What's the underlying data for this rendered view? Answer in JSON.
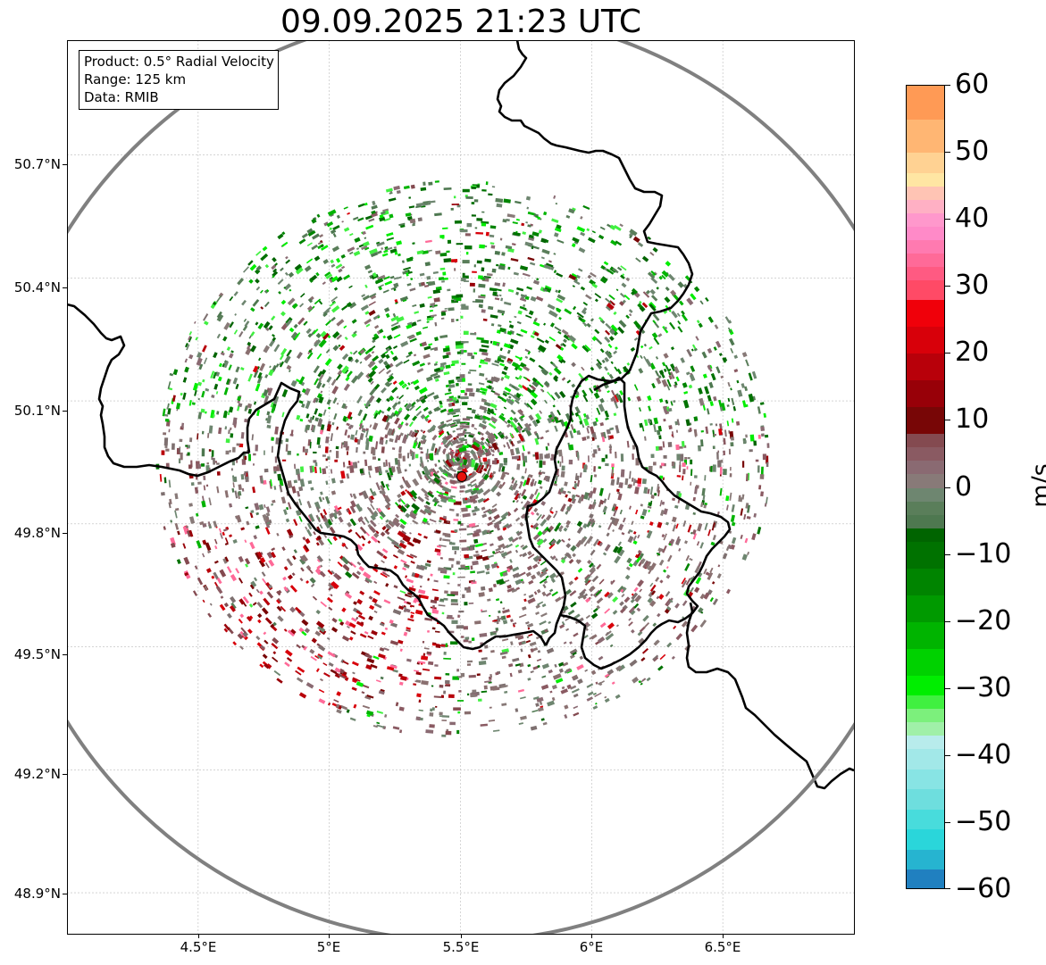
{
  "title": "09.09.2025 21:23 UTC",
  "info_box": {
    "product": "Product: 0.5° Radial Velocity",
    "range": "Range: 125 km",
    "data": "Data: RMIB"
  },
  "map": {
    "lon_range": [
      4.0,
      7.0
    ],
    "lat_range": [
      48.8,
      50.98
    ],
    "radar_site": {
      "lon": 5.505,
      "lat": 49.915
    },
    "range_km": 125,
    "x_ticks": [
      "4.5°E",
      "5°E",
      "5.5°E",
      "6°E",
      "6.5°E"
    ],
    "x_tick_values": [
      4.5,
      5.0,
      5.5,
      6.0,
      6.5
    ],
    "y_ticks": [
      "50.7°N",
      "50.4°N",
      "50.1°N",
      "49.8°N",
      "49.5°N",
      "49.2°N",
      "48.9°N"
    ],
    "y_tick_values": [
      50.7,
      50.4,
      50.1,
      49.8,
      49.5,
      49.2,
      48.9
    ],
    "gridlines": true,
    "colors": {
      "range_ring": "#808080",
      "borders": "#000000",
      "radar_marker": "#e8120c"
    }
  },
  "colorbar": {
    "unit": "m/s",
    "min": -60,
    "max": 60,
    "tick_values": [
      60,
      50,
      40,
      30,
      20,
      10,
      0,
      -10,
      -20,
      -30,
      -40,
      -50,
      -60
    ],
    "ticks": [
      "60",
      "50",
      "40",
      "30",
      "20",
      "10",
      "0",
      "−10",
      "−20",
      "−30",
      "−40",
      "−50",
      "−60"
    ],
    "segments": [
      {
        "from": 55,
        "to": 60,
        "color": "#ff9a55"
      },
      {
        "from": 50,
        "to": 55,
        "color": "#ffb673"
      },
      {
        "from": 47,
        "to": 50,
        "color": "#ffd293"
      },
      {
        "from": 45,
        "to": 47,
        "color": "#ffe6a3"
      },
      {
        "from": 43,
        "to": 45,
        "color": "#ffc4b4"
      },
      {
        "from": 41,
        "to": 43,
        "color": "#ffb0c4"
      },
      {
        "from": 39,
        "to": 41,
        "color": "#ff98cc"
      },
      {
        "from": 37,
        "to": 39,
        "color": "#ff8ac8"
      },
      {
        "from": 35,
        "to": 37,
        "color": "#ff7ab0"
      },
      {
        "from": 33,
        "to": 35,
        "color": "#ff6a98"
      },
      {
        "from": 31,
        "to": 33,
        "color": "#ff5a82"
      },
      {
        "from": 28,
        "to": 31,
        "color": "#ff4a66"
      },
      {
        "from": 24,
        "to": 28,
        "color": "#f0000a"
      },
      {
        "from": 20,
        "to": 24,
        "color": "#d8000a"
      },
      {
        "from": 16,
        "to": 20,
        "color": "#b8000a"
      },
      {
        "from": 12,
        "to": 16,
        "color": "#980008"
      },
      {
        "from": 8,
        "to": 12,
        "color": "#780606"
      },
      {
        "from": 6,
        "to": 8,
        "color": "#844a50"
      },
      {
        "from": 4,
        "to": 6,
        "color": "#8a5a62"
      },
      {
        "from": 2,
        "to": 4,
        "color": "#8a6a72"
      },
      {
        "from": 0,
        "to": 2,
        "color": "#887a78"
      },
      {
        "from": -2,
        "to": 0,
        "color": "#6e8670"
      },
      {
        "from": -4,
        "to": -2,
        "color": "#5a7e5a"
      },
      {
        "from": -6,
        "to": -4,
        "color": "#4e7850"
      },
      {
        "from": -8,
        "to": -6,
        "color": "#006400"
      },
      {
        "from": -12,
        "to": -8,
        "color": "#007200"
      },
      {
        "from": -16,
        "to": -12,
        "color": "#008400"
      },
      {
        "from": -20,
        "to": -16,
        "color": "#009a00"
      },
      {
        "from": -24,
        "to": -20,
        "color": "#00b400"
      },
      {
        "from": -28,
        "to": -24,
        "color": "#00d200"
      },
      {
        "from": -31,
        "to": -28,
        "color": "#00ee00"
      },
      {
        "from": -33,
        "to": -31,
        "color": "#40f040"
      },
      {
        "from": -35,
        "to": -33,
        "color": "#7cf07c"
      },
      {
        "from": -37,
        "to": -35,
        "color": "#a0f0a8"
      },
      {
        "from": -39,
        "to": -37,
        "color": "#b8ecec"
      },
      {
        "from": -42,
        "to": -39,
        "color": "#a2e8e8"
      },
      {
        "from": -45,
        "to": -42,
        "color": "#88e4e4"
      },
      {
        "from": -48,
        "to": -45,
        "color": "#6edede"
      },
      {
        "from": -51,
        "to": -48,
        "color": "#48dcdc"
      },
      {
        "from": -54,
        "to": -51,
        "color": "#2ad6da"
      },
      {
        "from": -57,
        "to": -54,
        "color": "#26b4d0"
      },
      {
        "from": -60,
        "to": -57,
        "color": "#2080c0"
      }
    ]
  }
}
